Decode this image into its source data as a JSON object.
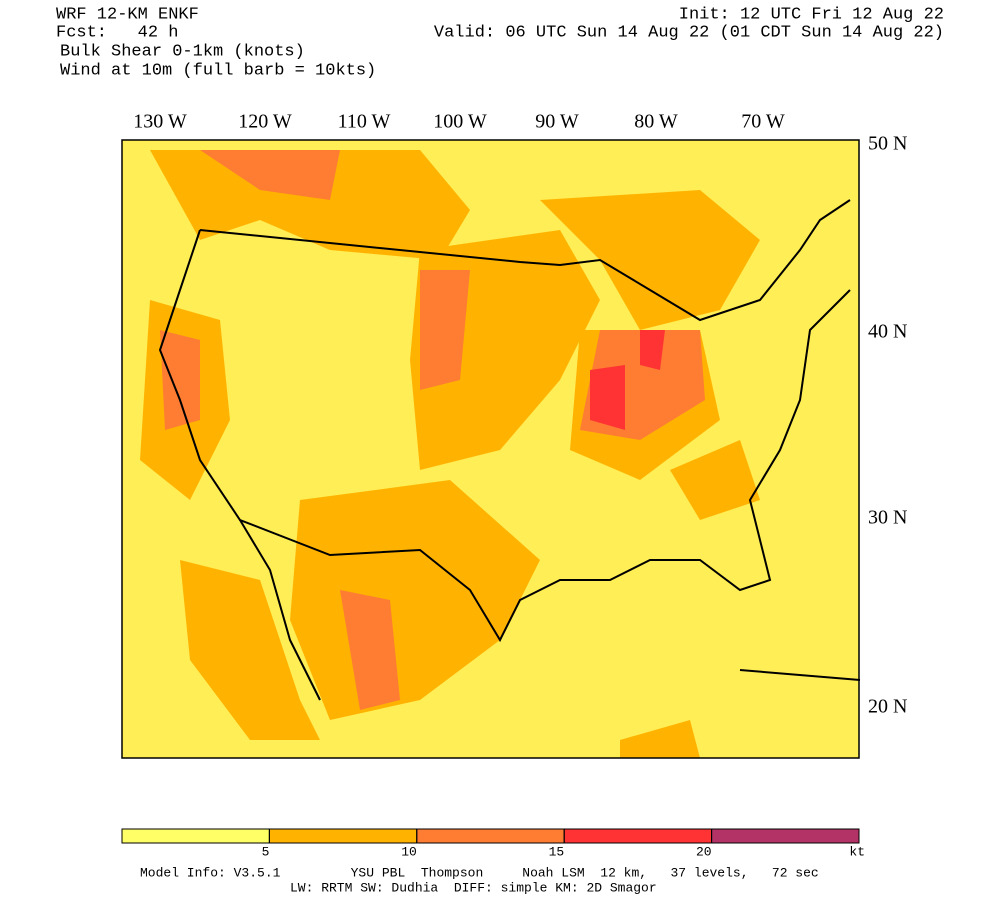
{
  "header": {
    "left": [
      "WRF 12-KM ENKF",
      "Fcst:   42 h",
      "Bulk Shear 0-1km (knots)",
      "Wind at 10m (full barb = 10kts)"
    ],
    "right": [
      "Init: 12 UTC Fri 12 Aug 22",
      "Valid: 06 UTC Sun 14 Aug 22 (01 CDT Sun 14 Aug 22)"
    ]
  },
  "map": {
    "longitude_labels": [
      "130 W",
      "120 W",
      "110 W",
      "100 W",
      "90 W",
      "80 W",
      "70 W"
    ],
    "latitude_labels": [
      "50 N",
      "40 N",
      "30 N",
      "20 N"
    ]
  },
  "colorbar": {
    "lim": [
      0,
      25
    ],
    "ticks": [
      5,
      10,
      15,
      20
    ],
    "unit": "kt",
    "colors": [
      "#ffff66",
      "#ffb300",
      "#ff7d33",
      "#ff3333",
      "#b33366"
    ]
  },
  "footer": [
    "Model Info: V3.5.1         YSU PBL  Thompson     Noah LSM  12 km,   37 levels,   72 sec",
    "LW: RRTM SW: Dudhia  DIFF: simple KM: 2D Smagor"
  ]
}
